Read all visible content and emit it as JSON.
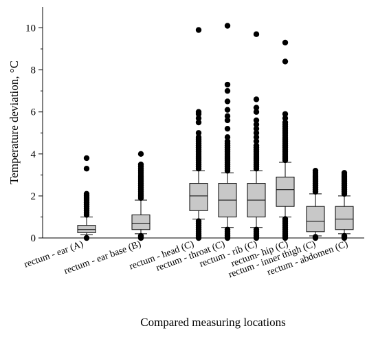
{
  "chart_data": {
    "type": "box",
    "ylabel": "Temperature deviation, °C",
    "xlabel": "Compared measuring locations",
    "ylim": [
      0,
      11
    ],
    "yticks": [
      0,
      2,
      4,
      6,
      8,
      10
    ],
    "grid": false,
    "categories": [
      "rectum - ear (A)",
      "rectum - ear base (B)",
      "rectum - head (C)",
      "rectum - throat (C)",
      "rectum - rib (C)",
      "rectum- hip (C)",
      "rectum - inner thigh (C)",
      "rectum - abdomen (C)"
    ],
    "boxes": [
      {
        "whisker_low": 0.15,
        "q1": 0.25,
        "median": 0.4,
        "q3": 0.6,
        "whisker_high": 1.0,
        "outliers_low": [
          0.0
        ],
        "outliers_high": [
          1.1,
          1.2,
          1.3,
          1.4,
          1.5,
          1.6,
          1.7,
          1.8,
          1.9,
          2.0,
          2.1,
          3.3,
          3.8
        ]
      },
      {
        "whisker_low": 0.2,
        "q1": 0.4,
        "median": 0.7,
        "q3": 1.1,
        "whisker_high": 1.8,
        "outliers_low": [
          0.0,
          0.05,
          0.1
        ],
        "outliers_high": [
          1.9,
          2.0,
          2.1,
          2.2,
          2.3,
          2.4,
          2.5,
          2.6,
          2.7,
          2.8,
          2.9,
          3.0,
          3.1,
          3.2,
          3.3,
          3.4,
          3.5,
          4.0
        ]
      },
      {
        "whisker_low": 0.9,
        "q1": 1.3,
        "median": 2.0,
        "q3": 2.6,
        "whisker_high": 3.2,
        "outliers_low": [
          0.0,
          0.1,
          0.2,
          0.3,
          0.4,
          0.5,
          0.6,
          0.7,
          0.8
        ],
        "outliers_high": [
          3.3,
          3.4,
          3.5,
          3.6,
          3.7,
          3.8,
          3.9,
          4.0,
          4.1,
          4.2,
          4.3,
          4.4,
          4.5,
          4.6,
          4.7,
          4.8,
          5.0,
          5.5,
          5.7,
          5.9,
          6.0,
          9.9
        ]
      },
      {
        "whisker_low": 0.5,
        "q1": 1.0,
        "median": 1.8,
        "q3": 2.6,
        "whisker_high": 3.1,
        "outliers_low": [
          0.0,
          0.1,
          0.2,
          0.3,
          0.4
        ],
        "outliers_high": [
          3.2,
          3.3,
          3.4,
          3.5,
          3.6,
          3.7,
          3.8,
          3.9,
          4.0,
          4.1,
          4.2,
          4.3,
          4.4,
          4.5,
          4.6,
          4.8,
          5.2,
          5.6,
          5.8,
          6.1,
          6.5,
          7.0,
          7.3,
          10.1
        ]
      },
      {
        "whisker_low": 0.5,
        "q1": 1.0,
        "median": 1.8,
        "q3": 2.6,
        "whisker_high": 3.2,
        "outliers_low": [
          0.0,
          0.1,
          0.2,
          0.3,
          0.4
        ],
        "outliers_high": [
          3.3,
          3.4,
          3.5,
          3.6,
          3.7,
          3.8,
          3.9,
          4.0,
          4.1,
          4.2,
          4.3,
          4.4,
          4.6,
          4.8,
          5.0,
          5.2,
          5.4,
          5.6,
          6.0,
          6.2,
          6.6,
          9.7
        ]
      },
      {
        "whisker_low": 1.0,
        "q1": 1.5,
        "median": 2.3,
        "q3": 2.9,
        "whisker_high": 3.6,
        "outliers_low": [
          0.0,
          0.1,
          0.2,
          0.3,
          0.4,
          0.5,
          0.6,
          0.7,
          0.8,
          0.9
        ],
        "outliers_high": [
          3.7,
          3.8,
          3.9,
          4.0,
          4.1,
          4.2,
          4.3,
          4.4,
          4.5,
          4.6,
          4.7,
          4.8,
          4.9,
          5.0,
          5.1,
          5.2,
          5.3,
          5.4,
          5.5,
          5.7,
          5.9,
          8.4,
          9.3
        ]
      },
      {
        "whisker_low": 0.1,
        "q1": 0.3,
        "median": 0.8,
        "q3": 1.5,
        "whisker_high": 2.1,
        "outliers_low": [
          0.0,
          0.05
        ],
        "outliers_high": [
          2.2,
          2.3,
          2.4,
          2.5,
          2.6,
          2.7,
          2.8,
          2.9,
          3.0,
          3.1,
          3.2
        ]
      },
      {
        "whisker_low": 0.2,
        "q1": 0.4,
        "median": 0.9,
        "q3": 1.5,
        "whisker_high": 2.0,
        "outliers_low": [
          0.0,
          0.05,
          0.1
        ],
        "outliers_high": [
          2.1,
          2.2,
          2.3,
          2.4,
          2.5,
          2.6,
          2.7,
          2.8,
          2.9,
          3.0,
          3.1
        ]
      }
    ]
  }
}
